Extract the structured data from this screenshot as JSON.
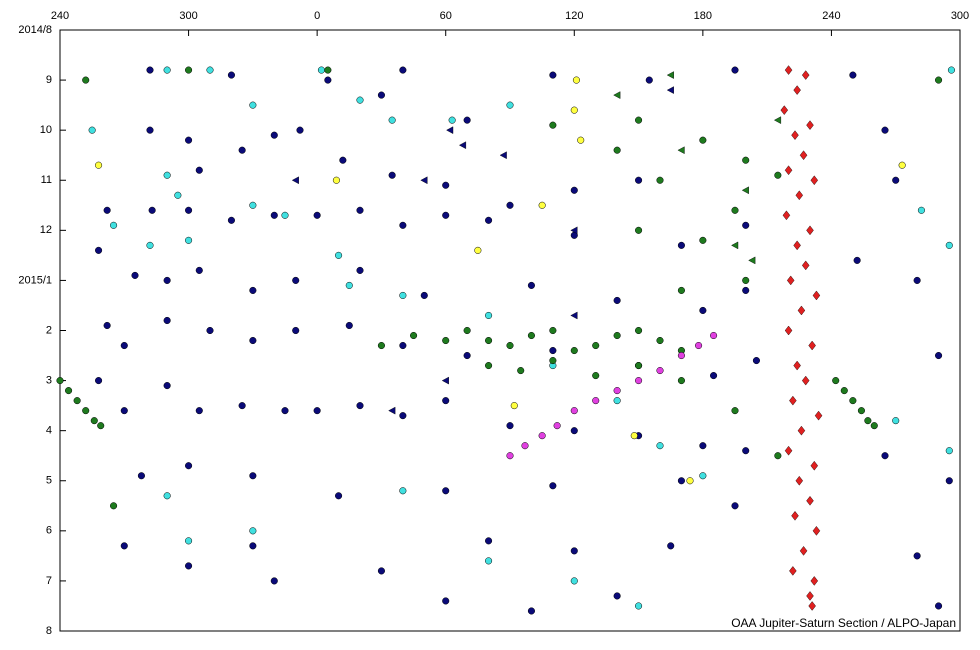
{
  "chart_data": {
    "type": "scatter",
    "credit": "OAA Jupiter-Saturn Section / ALPO-Japan",
    "xlim": [
      240,
      660
    ],
    "xticks": [
      240,
      300,
      {
        "value": 360,
        "label": "0"
      },
      {
        "value": 420,
        "label": "60"
      },
      {
        "value": 480,
        "label": "120"
      },
      {
        "value": 540,
        "label": "180"
      },
      {
        "value": 600,
        "label": "240"
      },
      {
        "value": 660,
        "label": "300"
      }
    ],
    "ylim": [
      12,
      0
    ],
    "yticks": [
      {
        "value": 0,
        "label": "2014/8"
      },
      {
        "value": 1,
        "label": "9"
      },
      {
        "value": 2,
        "label": "10"
      },
      {
        "value": 3,
        "label": "11"
      },
      {
        "value": 4,
        "label": "12"
      },
      {
        "value": 5,
        "label": "2015/1"
      },
      {
        "value": 6,
        "label": "2"
      },
      {
        "value": 7,
        "label": "3"
      },
      {
        "value": 8,
        "label": "4"
      },
      {
        "value": 9,
        "label": "5"
      },
      {
        "value": 10,
        "label": "6"
      },
      {
        "value": 11,
        "label": "7"
      },
      {
        "value": 12,
        "label": "8"
      }
    ],
    "series": [
      {
        "color": "#0a0a78",
        "marker": "circle",
        "x": [
          282,
          320,
          352,
          365,
          390,
          400,
          430,
          470,
          515,
          555,
          282,
          300,
          305,
          325,
          340,
          372,
          395,
          420,
          450,
          480,
          510,
          262,
          283,
          300,
          320,
          340,
          360,
          380,
          400,
          420,
          440,
          480,
          530,
          560,
          258,
          275,
          290,
          305,
          330,
          350,
          380,
          410,
          460,
          500,
          540,
          560,
          262,
          270,
          290,
          310,
          330,
          350,
          375,
          400,
          430,
          470,
          510,
          545,
          565,
          258,
          270,
          290,
          305,
          325,
          345,
          360,
          380,
          400,
          420,
          450,
          480,
          510,
          540,
          560,
          278,
          300,
          330,
          370,
          420,
          470,
          530,
          555,
          270,
          300,
          330,
          390,
          440,
          480,
          525,
          340,
          420,
          460,
          500,
          610,
          625,
          630,
          612,
          640,
          650,
          625,
          655,
          640,
          650
        ],
        "values": [
          0.8,
          0.9,
          2.0,
          1.0,
          1.3,
          0.8,
          1.8,
          0.9,
          1.0,
          0.8,
          2.0,
          2.2,
          2.8,
          2.4,
          2.1,
          2.6,
          2.9,
          3.1,
          3.5,
          3.2,
          3.0,
          3.6,
          3.6,
          3.6,
          3.8,
          3.7,
          3.7,
          3.6,
          3.9,
          3.7,
          3.8,
          4.1,
          4.3,
          3.9,
          4.4,
          4.9,
          5.0,
          4.8,
          5.2,
          5.0,
          4.8,
          5.3,
          5.1,
          5.4,
          5.6,
          5.2,
          5.9,
          6.3,
          5.8,
          6.0,
          6.2,
          6.0,
          5.9,
          6.3,
          6.5,
          6.4,
          6.7,
          6.9,
          6.6,
          7.0,
          7.6,
          7.1,
          7.6,
          7.5,
          7.6,
          7.6,
          7.5,
          7.7,
          7.4,
          7.9,
          8.0,
          8.1,
          8.3,
          8.4,
          8.9,
          8.7,
          8.9,
          9.3,
          9.2,
          9.1,
          9.0,
          9.5,
          10.3,
          10.7,
          10.3,
          10.8,
          10.2,
          10.4,
          10.3,
          11.0,
          11.4,
          11.6,
          11.3,
          0.9,
          2.0,
          3.0,
          4.6,
          5.0,
          6.5,
          8.5,
          9.0,
          10.5,
          11.5
        ]
      },
      {
        "color": "#40e0e0",
        "marker": "circle",
        "x": [
          290,
          310,
          330,
          362,
          380,
          395,
          423,
          450,
          255,
          290,
          295,
          330,
          265,
          282,
          300,
          345,
          370,
          375,
          400,
          440,
          470,
          500,
          520,
          540,
          290,
          300,
          330,
          400,
          440,
          480,
          510,
          642,
          655,
          656,
          655,
          630
        ],
        "values": [
          0.8,
          0.8,
          1.5,
          0.8,
          1.4,
          1.8,
          1.8,
          1.5,
          2.0,
          2.9,
          3.3,
          3.5,
          3.9,
          4.3,
          4.2,
          3.7,
          4.5,
          5.1,
          5.3,
          5.7,
          6.7,
          7.4,
          8.3,
          8.9,
          9.3,
          10.2,
          10.0,
          9.2,
          10.6,
          11.0,
          11.5,
          3.6,
          4.3,
          0.8,
          8.4,
          7.8
        ]
      },
      {
        "color": "#1e7a1e",
        "marker": "circle",
        "x": [
          252,
          300,
          365,
          470,
          510,
          540,
          560,
          575,
          500,
          520,
          555,
          540,
          510,
          530,
          560,
          390,
          405,
          420,
          430,
          440,
          450,
          460,
          470,
          480,
          490,
          500,
          510,
          520,
          530,
          440,
          455,
          470,
          490,
          510,
          530,
          555,
          575,
          240,
          244,
          248,
          252,
          256,
          259,
          602,
          606,
          610,
          614,
          617,
          620,
          650,
          265
        ],
        "values": [
          1.0,
          0.8,
          0.8,
          1.9,
          1.8,
          2.2,
          2.6,
          2.9,
          2.4,
          3.0,
          3.6,
          4.2,
          4.0,
          5.2,
          5.0,
          6.3,
          6.1,
          6.2,
          6.0,
          6.2,
          6.3,
          6.1,
          6.0,
          6.4,
          6.3,
          6.1,
          6.0,
          6.2,
          6.4,
          6.7,
          6.8,
          6.6,
          6.9,
          6.7,
          7.0,
          7.6,
          8.5,
          7.0,
          7.2,
          7.4,
          7.6,
          7.8,
          7.9,
          7.0,
          7.2,
          7.4,
          7.6,
          7.8,
          7.9,
          1.0,
          9.5
        ]
      },
      {
        "color": "#ffff40",
        "marker": "circle",
        "x": [
          481,
          480,
          483,
          465,
          369,
          435,
          452,
          508,
          534,
          258,
          633
        ],
        "values": [
          1.0,
          1.6,
          2.2,
          3.5,
          3.0,
          4.4,
          7.5,
          8.1,
          9.0,
          2.7,
          2.7
        ]
      },
      {
        "color": "#e040e0",
        "marker": "circle",
        "x": [
          450,
          457,
          465,
          472,
          480,
          490,
          500,
          510,
          520,
          530,
          538,
          545
        ],
        "values": [
          8.5,
          8.3,
          8.1,
          7.9,
          7.6,
          7.4,
          7.2,
          7.0,
          6.8,
          6.5,
          6.3,
          6.1
        ]
      },
      {
        "color": "#e02020",
        "marker": "diamond",
        "x": [
          580,
          588,
          584,
          578,
          590,
          583,
          587,
          580,
          592,
          585,
          579,
          590,
          584,
          588,
          581,
          593,
          586,
          580,
          591,
          584,
          588,
          582,
          594,
          586,
          580,
          592,
          585,
          590,
          583,
          593,
          587,
          582,
          592,
          590,
          591
        ],
        "values": [
          0.8,
          0.9,
          1.2,
          1.6,
          1.9,
          2.1,
          2.5,
          2.8,
          3.0,
          3.3,
          3.7,
          4.0,
          4.3,
          4.7,
          5.0,
          5.3,
          5.6,
          6.0,
          6.3,
          6.7,
          7.0,
          7.4,
          7.7,
          8.0,
          8.4,
          8.7,
          9.0,
          9.4,
          9.7,
          10.0,
          10.4,
          10.8,
          11.0,
          11.3,
          11.5
        ]
      },
      {
        "color": "#0a0a78",
        "marker": "triangle",
        "x": [
          422,
          428,
          410,
          447,
          480,
          525,
          350,
          420,
          480,
          395
        ],
        "values": [
          2.0,
          2.3,
          3.0,
          2.5,
          5.7,
          1.2,
          3.0,
          7.0,
          4.0,
          7.6
        ]
      },
      {
        "color": "#1e7a1e",
        "marker": "triangle",
        "x": [
          500,
          525,
          530,
          560,
          575,
          555,
          563
        ],
        "values": [
          1.3,
          0.9,
          2.4,
          3.2,
          1.8,
          4.3,
          4.6
        ]
      }
    ]
  }
}
